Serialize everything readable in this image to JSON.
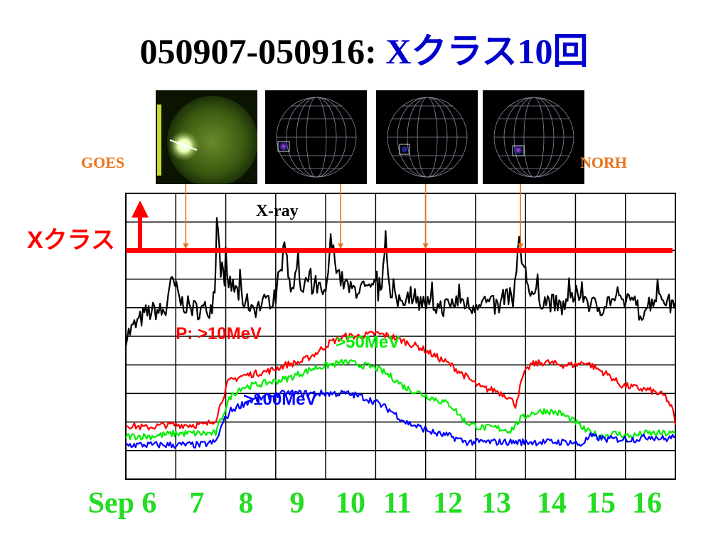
{
  "title": {
    "part1": "050907-050916: ",
    "part2": "Xクラス10回"
  },
  "labels": {
    "goes": "GOES",
    "norh": "NORH",
    "xclass": "Xクラス"
  },
  "thumbnails": [
    {
      "name": "goes-sxi-image",
      "kind": "goes"
    },
    {
      "name": "norh-image-1",
      "kind": "norh"
    },
    {
      "name": "norh-image-2",
      "kind": "norh"
    },
    {
      "name": "norh-image-3",
      "kind": "norh"
    }
  ],
  "colors": {
    "xray": "#000000",
    "p10": "#ff0000",
    "p50": "#00ee00",
    "p100": "#0000ff",
    "xclass_line": "#ff0000",
    "arrows": "#e8741a",
    "dates": "#22dd22",
    "title_accent": "#0000cc"
  },
  "chart_data": {
    "type": "line",
    "x_labels": [
      "Sep 6",
      "7",
      "8",
      "9",
      "10",
      "11",
      "12",
      "13",
      "14",
      "15",
      "16"
    ],
    "xlim": [
      6,
      17
    ],
    "ylim": [
      0,
      10
    ],
    "grid": true,
    "xclass_level": 8.0,
    "flare_arrow_days": [
      7.2,
      10.3,
      12.0,
      13.9
    ],
    "annotations": [
      {
        "text": "X-ray",
        "color": "#000000",
        "x": 8.6,
        "y": 9.2
      },
      {
        "text": "P: >10MeV",
        "color": "#ff0000",
        "x": 7.0,
        "y": 4.9
      },
      {
        "text": ">50MeV",
        "color": "#00ee00",
        "x": 10.2,
        "y": 4.6
      },
      {
        "text": ">100MeV",
        "color": "#0000ff",
        "x": 8.35,
        "y": 2.6
      }
    ],
    "series": [
      {
        "name": "X-ray",
        "color": "#000000",
        "points": [
          [
            6.0,
            5.0
          ],
          [
            6.2,
            5.4
          ],
          [
            6.4,
            5.8
          ],
          [
            6.6,
            5.9
          ],
          [
            6.8,
            5.8
          ],
          [
            6.85,
            6.6
          ],
          [
            6.95,
            6.9
          ],
          [
            7.1,
            6.2
          ],
          [
            7.3,
            6.0
          ],
          [
            7.5,
            5.9
          ],
          [
            7.7,
            6.0
          ],
          [
            7.78,
            6.4
          ],
          [
            7.82,
            9.1
          ],
          [
            7.9,
            7.4
          ],
          [
            8.0,
            7.0
          ],
          [
            8.2,
            6.6
          ],
          [
            8.4,
            6.2
          ],
          [
            8.6,
            6.0
          ],
          [
            8.8,
            6.2
          ],
          [
            9.0,
            6.4
          ],
          [
            9.1,
            7.4
          ],
          [
            9.2,
            8.2
          ],
          [
            9.3,
            6.5
          ],
          [
            9.45,
            7.8
          ],
          [
            9.5,
            6.3
          ],
          [
            9.6,
            7.0
          ],
          [
            9.7,
            6.5
          ],
          [
            9.8,
            6.8
          ],
          [
            10.0,
            6.3
          ],
          [
            10.1,
            8.3
          ],
          [
            10.3,
            7.0
          ],
          [
            10.5,
            6.6
          ],
          [
            10.7,
            6.7
          ],
          [
            10.9,
            6.5
          ],
          [
            11.0,
            6.8
          ],
          [
            11.1,
            6.3
          ],
          [
            11.2,
            8.7
          ],
          [
            11.3,
            6.2
          ],
          [
            11.5,
            6.3
          ],
          [
            11.7,
            6.5
          ],
          [
            11.9,
            6.2
          ],
          [
            12.1,
            6.1
          ],
          [
            12.3,
            6.0
          ],
          [
            12.5,
            6.1
          ],
          [
            12.7,
            6.3
          ],
          [
            12.9,
            6.0
          ],
          [
            13.1,
            6.3
          ],
          [
            13.3,
            6.1
          ],
          [
            13.5,
            6.0
          ],
          [
            13.6,
            6.6
          ],
          [
            13.75,
            6.2
          ],
          [
            13.82,
            7.6
          ],
          [
            13.9,
            7.9
          ],
          [
            14.0,
            7.2
          ],
          [
            14.1,
            6.5
          ],
          [
            14.3,
            6.3
          ],
          [
            14.5,
            6.2
          ],
          [
            14.7,
            6.0
          ],
          [
            14.9,
            6.2
          ],
          [
            15.1,
            6.6
          ],
          [
            15.3,
            6.1
          ],
          [
            15.5,
            6.0
          ],
          [
            15.7,
            6.3
          ],
          [
            15.9,
            6.1
          ],
          [
            16.1,
            6.4
          ],
          [
            16.3,
            5.8
          ],
          [
            16.5,
            6.2
          ],
          [
            16.7,
            6.5
          ],
          [
            16.9,
            6.1
          ],
          [
            17.0,
            6.2
          ]
        ]
      },
      {
        "name": ">10MeV",
        "color": "#ff0000",
        "points": [
          [
            6.0,
            1.9
          ],
          [
            6.4,
            1.8
          ],
          [
            6.8,
            1.9
          ],
          [
            7.2,
            1.9
          ],
          [
            7.6,
            1.9
          ],
          [
            7.8,
            2.1
          ],
          [
            7.95,
            2.9
          ],
          [
            8.05,
            3.4
          ],
          [
            8.3,
            3.6
          ],
          [
            8.6,
            3.7
          ],
          [
            8.9,
            3.8
          ],
          [
            9.2,
            4.0
          ],
          [
            9.5,
            4.1
          ],
          [
            9.8,
            4.4
          ],
          [
            10.1,
            4.8
          ],
          [
            10.4,
            5.0
          ],
          [
            10.7,
            5.0
          ],
          [
            11.0,
            5.1
          ],
          [
            11.3,
            5.0
          ],
          [
            11.6,
            4.8
          ],
          [
            11.9,
            4.6
          ],
          [
            12.2,
            4.3
          ],
          [
            12.5,
            4.0
          ],
          [
            12.8,
            3.6
          ],
          [
            13.1,
            3.2
          ],
          [
            13.4,
            3.1
          ],
          [
            13.65,
            2.9
          ],
          [
            13.8,
            2.6
          ],
          [
            13.95,
            3.6
          ],
          [
            14.1,
            4.0
          ],
          [
            14.4,
            4.1
          ],
          [
            14.7,
            4.0
          ],
          [
            15.0,
            4.0
          ],
          [
            15.2,
            4.1
          ],
          [
            15.5,
            3.8
          ],
          [
            15.7,
            3.6
          ],
          [
            15.9,
            3.3
          ],
          [
            16.2,
            3.2
          ],
          [
            16.5,
            3.1
          ],
          [
            16.8,
            2.9
          ],
          [
            16.95,
            2.4
          ],
          [
            17.0,
            1.9
          ]
        ]
      },
      {
        "name": ">50MeV",
        "color": "#00ee00",
        "points": [
          [
            6.0,
            1.5
          ],
          [
            6.5,
            1.5
          ],
          [
            7.0,
            1.6
          ],
          [
            7.5,
            1.6
          ],
          [
            7.8,
            1.6
          ],
          [
            7.95,
            2.3
          ],
          [
            8.1,
            2.9
          ],
          [
            8.3,
            3.2
          ],
          [
            8.6,
            3.3
          ],
          [
            8.9,
            3.4
          ],
          [
            9.2,
            3.5
          ],
          [
            9.5,
            3.7
          ],
          [
            9.8,
            3.9
          ],
          [
            10.1,
            4.0
          ],
          [
            10.4,
            4.1
          ],
          [
            10.7,
            4.0
          ],
          [
            11.0,
            3.9
          ],
          [
            11.3,
            3.6
          ],
          [
            11.6,
            3.2
          ],
          [
            11.9,
            3.0
          ],
          [
            12.2,
            2.8
          ],
          [
            12.5,
            2.6
          ],
          [
            12.8,
            2.0
          ],
          [
            13.1,
            1.8
          ],
          [
            13.4,
            1.8
          ],
          [
            13.7,
            1.7
          ],
          [
            13.9,
            2.1
          ],
          [
            14.1,
            2.3
          ],
          [
            14.4,
            2.4
          ],
          [
            14.7,
            2.3
          ],
          [
            15.0,
            2.0
          ],
          [
            15.2,
            1.7
          ],
          [
            15.5,
            1.5
          ],
          [
            15.8,
            1.6
          ],
          [
            16.1,
            1.5
          ],
          [
            16.4,
            1.6
          ],
          [
            16.7,
            1.6
          ],
          [
            17.0,
            1.6
          ]
        ]
      },
      {
        "name": ">100MeV",
        "color": "#0000ff",
        "points": [
          [
            6.0,
            1.2
          ],
          [
            6.5,
            1.2
          ],
          [
            7.0,
            1.2
          ],
          [
            7.5,
            1.2
          ],
          [
            7.8,
            1.3
          ],
          [
            7.95,
            2.0
          ],
          [
            8.1,
            2.4
          ],
          [
            8.3,
            2.6
          ],
          [
            8.6,
            2.8
          ],
          [
            8.9,
            2.9
          ],
          [
            9.2,
            3.0
          ],
          [
            9.5,
            3.0
          ],
          [
            9.8,
            3.0
          ],
          [
            10.1,
            3.0
          ],
          [
            10.4,
            3.0
          ],
          [
            10.7,
            2.9
          ],
          [
            11.0,
            2.7
          ],
          [
            11.3,
            2.4
          ],
          [
            11.6,
            2.0
          ],
          [
            11.9,
            1.8
          ],
          [
            12.2,
            1.6
          ],
          [
            12.5,
            1.5
          ],
          [
            12.8,
            1.3
          ],
          [
            13.1,
            1.3
          ],
          [
            13.4,
            1.3
          ],
          [
            13.7,
            1.3
          ],
          [
            14.0,
            1.3
          ],
          [
            14.3,
            1.3
          ],
          [
            14.6,
            1.3
          ],
          [
            14.9,
            1.3
          ],
          [
            15.1,
            1.2
          ],
          [
            15.3,
            1.5
          ],
          [
            15.6,
            1.4
          ],
          [
            15.9,
            1.4
          ],
          [
            16.2,
            1.4
          ],
          [
            16.5,
            1.5
          ],
          [
            16.8,
            1.4
          ],
          [
            17.0,
            1.5
          ]
        ]
      }
    ]
  }
}
